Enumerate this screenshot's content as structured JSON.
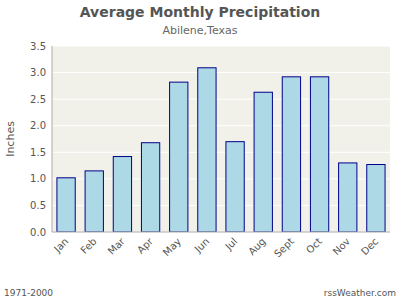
{
  "chart_data": {
    "type": "bar",
    "title": "Average Monthly Precipitation",
    "subtitle": "Abilene,Texas",
    "ylabel": "Inches",
    "annotations": [
      "1971-2000",
      "rssWeather.com"
    ],
    "categories": [
      "Jan",
      "Feb",
      "Mar",
      "Apr",
      "May",
      "Jun",
      "Jul",
      "Aug",
      "Sept",
      "Oct",
      "Nov",
      "Dec"
    ],
    "values": [
      1.02,
      1.15,
      1.42,
      1.68,
      2.82,
      3.09,
      1.7,
      2.63,
      2.92,
      2.92,
      1.3,
      1.27
    ],
    "color": "#add8e6",
    "ylim": [
      0,
      3.5
    ],
    "yticks": [
      {
        "value": 0,
        "label": "0.0"
      },
      0.5,
      {
        "value": 1,
        "label": "1.0"
      },
      1.5,
      {
        "value": 2,
        "label": "2.0"
      },
      2.5,
      {
        "value": 3,
        "label": "3.0"
      },
      3.5
    ],
    "grid": true
  }
}
